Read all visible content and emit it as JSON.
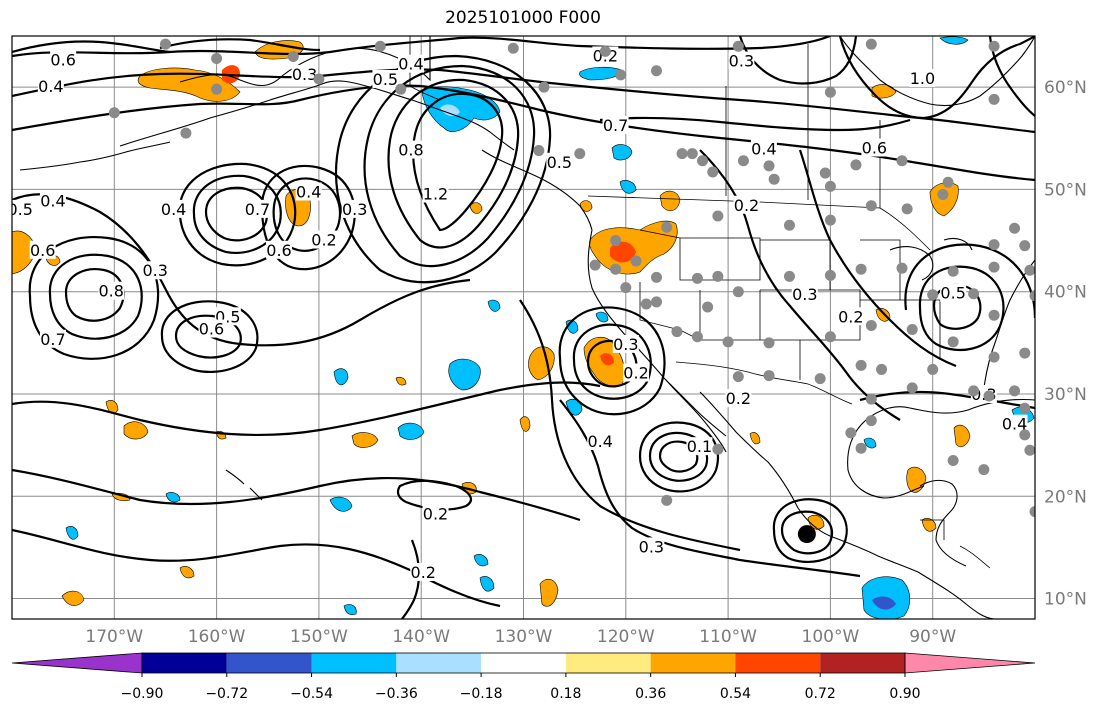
{
  "title": "2025101000 F000",
  "map": {
    "lon_labels": [
      "170°W",
      "160°W",
      "150°W",
      "140°W",
      "130°W",
      "120°W",
      "110°W",
      "100°W",
      "90°W"
    ],
    "lat_labels": [
      "60°N",
      "50°N",
      "40°N",
      "30°N",
      "20°N",
      "10°N"
    ],
    "lon_range": [
      -180,
      -80
    ],
    "lat_range": [
      8,
      65
    ]
  },
  "colorbar": {
    "colors": [
      "#9933cc",
      "#000099",
      "#3355cc",
      "#00bfff",
      "#aadfff",
      "#ffffff",
      "#ffeb80",
      "#ffa500",
      "#ff4500",
      "#b22222",
      "#ff88aa"
    ],
    "labels": [
      "−0.90",
      "−0.72",
      "−0.54",
      "−0.36",
      "−0.18",
      "0.18",
      "0.36",
      "0.54",
      "0.72",
      "0.90"
    ]
  },
  "contour_labels": [
    {
      "text": "0.6",
      "lon": -175,
      "lat": 62.6
    },
    {
      "text": "0.4",
      "lon": -176.2,
      "lat": 60.0
    },
    {
      "text": "0.3",
      "lon": -151.4,
      "lat": 61.2
    },
    {
      "text": "0.5",
      "lon": -143.5,
      "lat": 60.7
    },
    {
      "text": "0.4",
      "lon": -141.0,
      "lat": 62.2
    },
    {
      "text": "0.2",
      "lon": -122.0,
      "lat": 63.0
    },
    {
      "text": "0.3",
      "lon": -108.7,
      "lat": 62.5
    },
    {
      "text": "0.7",
      "lon": -121.0,
      "lat": 56.2
    },
    {
      "text": "0.4",
      "lon": -106.5,
      "lat": 53.9
    },
    {
      "text": "0.6",
      "lon": -95.7,
      "lat": 54.0
    },
    {
      "text": "1.0",
      "lon": -91.0,
      "lat": 60.8
    },
    {
      "text": "0.8",
      "lon": -141.0,
      "lat": 53.8
    },
    {
      "text": "1.2",
      "lon": -138.6,
      "lat": 49.5
    },
    {
      "text": "0.5",
      "lon": -126.5,
      "lat": 52.6
    },
    {
      "text": "0.4",
      "lon": -151.0,
      "lat": 49.7
    },
    {
      "text": "0.7",
      "lon": -156.0,
      "lat": 48.0
    },
    {
      "text": "0.6",
      "lon": -153.9,
      "lat": 44.0
    },
    {
      "text": "0.2",
      "lon": -149.5,
      "lat": 45.0
    },
    {
      "text": "0.3",
      "lon": -146.5,
      "lat": 48.0
    },
    {
      "text": "0.4",
      "lon": -176.0,
      "lat": 48.8
    },
    {
      "text": "0.5",
      "lon": -179.2,
      "lat": 48.0
    },
    {
      "text": "0.6",
      "lon": -177.0,
      "lat": 44.0
    },
    {
      "text": "0.8",
      "lon": -170.3,
      "lat": 40.0
    },
    {
      "text": "0.3",
      "lon": -166.0,
      "lat": 42.0
    },
    {
      "text": "0.4",
      "lon": -164.2,
      "lat": 48.0
    },
    {
      "text": "0.7",
      "lon": -176.0,
      "lat": 35.3
    },
    {
      "text": "0.5",
      "lon": -158.9,
      "lat": 37.5
    },
    {
      "text": "0.6",
      "lon": -160.5,
      "lat": 36.3
    },
    {
      "text": "0.2",
      "lon": -108.2,
      "lat": 48.4
    },
    {
      "text": "0.3",
      "lon": -102.5,
      "lat": 39.7
    },
    {
      "text": "0.2",
      "lon": -98.0,
      "lat": 37.5
    },
    {
      "text": "0.5",
      "lon": -88.0,
      "lat": 39.8
    },
    {
      "text": "0.3",
      "lon": -85.0,
      "lat": 29.9
    },
    {
      "text": "0.4",
      "lon": -82.0,
      "lat": 27.0
    },
    {
      "text": "0.3",
      "lon": -120.0,
      "lat": 34.8
    },
    {
      "text": "0.2",
      "lon": -119.0,
      "lat": 32.0
    },
    {
      "text": "0.2",
      "lon": -109.0,
      "lat": 29.5
    },
    {
      "text": "0.4",
      "lon": -122.5,
      "lat": 25.3
    },
    {
      "text": "0.1",
      "lon": -112.8,
      "lat": 24.8
    },
    {
      "text": "0.2",
      "lon": -138.6,
      "lat": 18.2
    },
    {
      "text": "0.3",
      "lon": -117.5,
      "lat": 15.0
    },
    {
      "text": "0.2",
      "lon": -139.8,
      "lat": 12.5
    }
  ],
  "markers": [
    {
      "label": "filled circle",
      "lon": -102.3,
      "lat": 16.3
    }
  ]
}
